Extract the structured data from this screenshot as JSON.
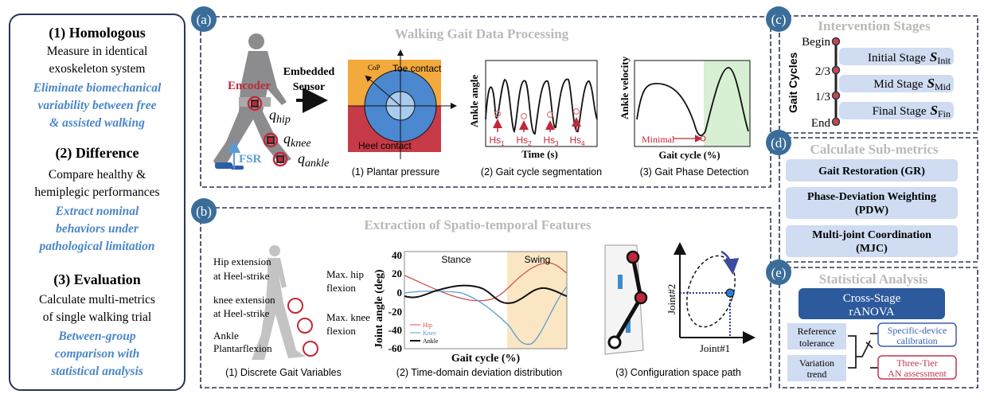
{
  "left_panel": {
    "s1_title": "(1) Homologous",
    "s1_lines": [
      "Measure in identical",
      "exoskeleton system"
    ],
    "s1_blue": [
      "Eliminate biomechanical",
      "variability between free",
      "& assisted walking"
    ],
    "s2_title": "(2) Difference",
    "s2_lines": [
      "Compare healthy &",
      "hemiplegic performances"
    ],
    "s2_blue": [
      "Extract nominal",
      "behaviors under",
      "pathological limitation"
    ],
    "s3_title": "(3) Evaluation",
    "s3_lines": [
      "Calculate multi-metrics",
      "of single walking trial"
    ],
    "s3_blue": [
      "Between-group",
      "comparison with",
      "statistical analysis"
    ]
  },
  "panel_a": {
    "badge": "(a)",
    "title": "Walking Gait Data Processing",
    "encoder": "Encoder",
    "fsr": "FSR",
    "q_hip": "q",
    "q_hip_sub": "hip",
    "q_knee": "q",
    "q_knee_sub": "knee",
    "q_ankle": "q",
    "q_ankle_sub": "ankle",
    "embedded": [
      "Embedded",
      "Sensor"
    ],
    "cop": "CoP",
    "toe": "Toe contact",
    "heel": "Heel contact",
    "caption1": "(1) Plantar pressure",
    "ankle_angle": "Ankle angle",
    "time": "Time (s)",
    "hs": [
      "Hs",
      "Hs",
      "Hs",
      "Hs"
    ],
    "hs_sub": [
      "1",
      "2",
      "3",
      "4"
    ],
    "caption2": "(2) Gait cycle segmentation",
    "ankle_velocity": "Ankle velocity",
    "minimal": "Minimal",
    "gait_cycle": "Gait cycle (%)",
    "caption3": "(3) Gait Phase Detection"
  },
  "panel_b": {
    "badge": "(b)",
    "title": "Extraction of Spatio-temporal Features",
    "labels_left": [
      "Hip extension",
      "at Heel-strike",
      "knee extension",
      "at Heel-strike",
      "Ankle",
      "Plantarflexion"
    ],
    "labels_right": [
      "Max. hip",
      "flexion",
      "Max. knee",
      "flexion"
    ],
    "caption1": "(1) Discrete Gait Variables",
    "chart": {
      "ylabel": "Joint angle (deg)",
      "xlabel": "Gait cycle (%)",
      "yticks": [
        "40",
        "20",
        "0",
        "-20",
        "-40",
        "-60"
      ],
      "stance": "Stance",
      "swing": "Swing",
      "legend": [
        "Hip",
        "Knee",
        "Ankle"
      ],
      "colors": {
        "hip": "#d0504f",
        "knee": "#5a9bd5",
        "ankle": "#111111",
        "swing": "#fbe6c3"
      }
    },
    "caption2": "(2) Time-domain deviation distribution",
    "joint2": "Joint#2",
    "joint1": "Joint#1",
    "caption3": "(3) Configuration space path"
  },
  "panel_c": {
    "badge": "(c)",
    "title": "Intervention Stages",
    "axis": "Gait Cycles",
    "ticks": [
      "Begin",
      "2/3",
      "1/3",
      "End"
    ],
    "stages": [
      {
        "label": "Initial Stage",
        "sym": "S",
        "sub": "Init"
      },
      {
        "label": "Mid Stage",
        "sym": "S",
        "sub": "Mid"
      },
      {
        "label": "Final Stage",
        "sym": "S",
        "sub": "Fin"
      }
    ]
  },
  "panel_d": {
    "badge": "(d)",
    "title": "Calculate Sub-metrics",
    "items": [
      [
        "Gait Restoration (GR)"
      ],
      [
        "Phase-Deviation Weighting",
        "(PDW)"
      ],
      [
        "Multi-joint Coordination",
        "(MJC)"
      ]
    ]
  },
  "panel_e": {
    "badge": "(e)",
    "title": "Statistical Analysis",
    "anova": [
      "Cross-Stage",
      "rANOVA"
    ],
    "ref": [
      "Reference",
      "tolerance"
    ],
    "trend": [
      "Variation",
      "trend"
    ],
    "calib": [
      "Specific-device",
      "calibration"
    ],
    "tier": [
      "Three-Tier",
      "AN assessment"
    ],
    "colors": {
      "anova": "#2d5a9c",
      "calib": "#3a5fb0",
      "tier": "#c2344f"
    }
  }
}
